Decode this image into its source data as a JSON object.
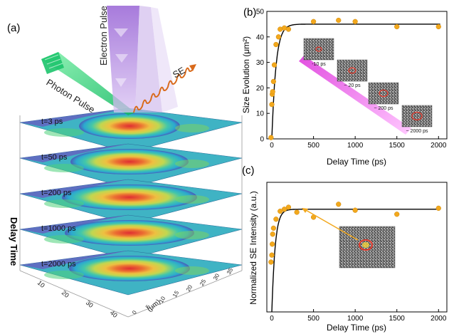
{
  "panel_a": {
    "label": "(a)",
    "beam_labels": {
      "electron": "Electron Pulse",
      "photon": "Photon Pulse",
      "se": "SE"
    },
    "axis_label": "Delay Time",
    "axis_unit": "(μm)",
    "x_ticks": [
      "10",
      "20",
      "30",
      "40"
    ],
    "y_ticks": [
      "0",
      "5",
      "10",
      "15",
      "20",
      "25",
      "30",
      "35"
    ],
    "layers": [
      "t=3 ps",
      "t=50 ps",
      "t=200 ps",
      "t=1000 ps",
      "t=2000 ps"
    ]
  },
  "insets_b": [
    "-10 ps",
    "~ 20 ps",
    "~ 200 ps",
    "~ 2000 ps"
  ],
  "colors": {
    "marker": "#f2a81d",
    "fit": "#000000",
    "trend_arrow": "#ee66ee",
    "electron": "#a773d6",
    "photon": "#2ed47a",
    "se": "#d96a1b"
  },
  "chart_data": [
    {
      "type": "scatter",
      "panel": "(b)",
      "xlabel": "Delay Time (ps)",
      "ylabel": "Size Evolution (μm²)",
      "xlim": [
        -60,
        2100
      ],
      "ylim": [
        0,
        50
      ],
      "x_ticks": [
        0,
        500,
        1000,
        1500,
        2000
      ],
      "y_ticks": [
        0,
        10,
        20,
        30,
        40,
        50
      ],
      "points": {
        "x": [
          -10,
          0,
          5,
          10,
          20,
          30,
          50,
          80,
          100,
          150,
          200,
          500,
          800,
          1000,
          1500,
          2000
        ],
        "y": [
          0.5,
          13.5,
          17.5,
          18.5,
          22.5,
          29,
          37,
          40,
          43,
          43.5,
          43,
          46,
          46.5,
          46,
          44,
          44
        ]
      },
      "fit": {
        "model": "saturating exponential",
        "y_max": 45,
        "tau_ps": 50
      }
    },
    {
      "type": "scatter",
      "panel": "(c)",
      "xlabel": "Delay Time (ps)",
      "ylabel": "Normalized SE Intensity (a.u.)",
      "xlim": [
        -60,
        2100
      ],
      "ylim": [
        0,
        1.3
      ],
      "x_ticks": [
        0,
        500,
        1000,
        1500,
        2000
      ],
      "points": {
        "x": [
          -10,
          0,
          5,
          10,
          20,
          50,
          100,
          150,
          200,
          300,
          500,
          800,
          1000,
          1500,
          2000
        ],
        "y": [
          0.5,
          0.57,
          0.68,
          0.78,
          0.84,
          0.93,
          1.01,
          1.03,
          1.05,
          1.0,
          0.95,
          1.08,
          1.02,
          0.98,
          1.04
        ]
      },
      "fit": {
        "model": "saturating exponential",
        "y_max": 1.03,
        "tau_ps": 40
      }
    }
  ]
}
